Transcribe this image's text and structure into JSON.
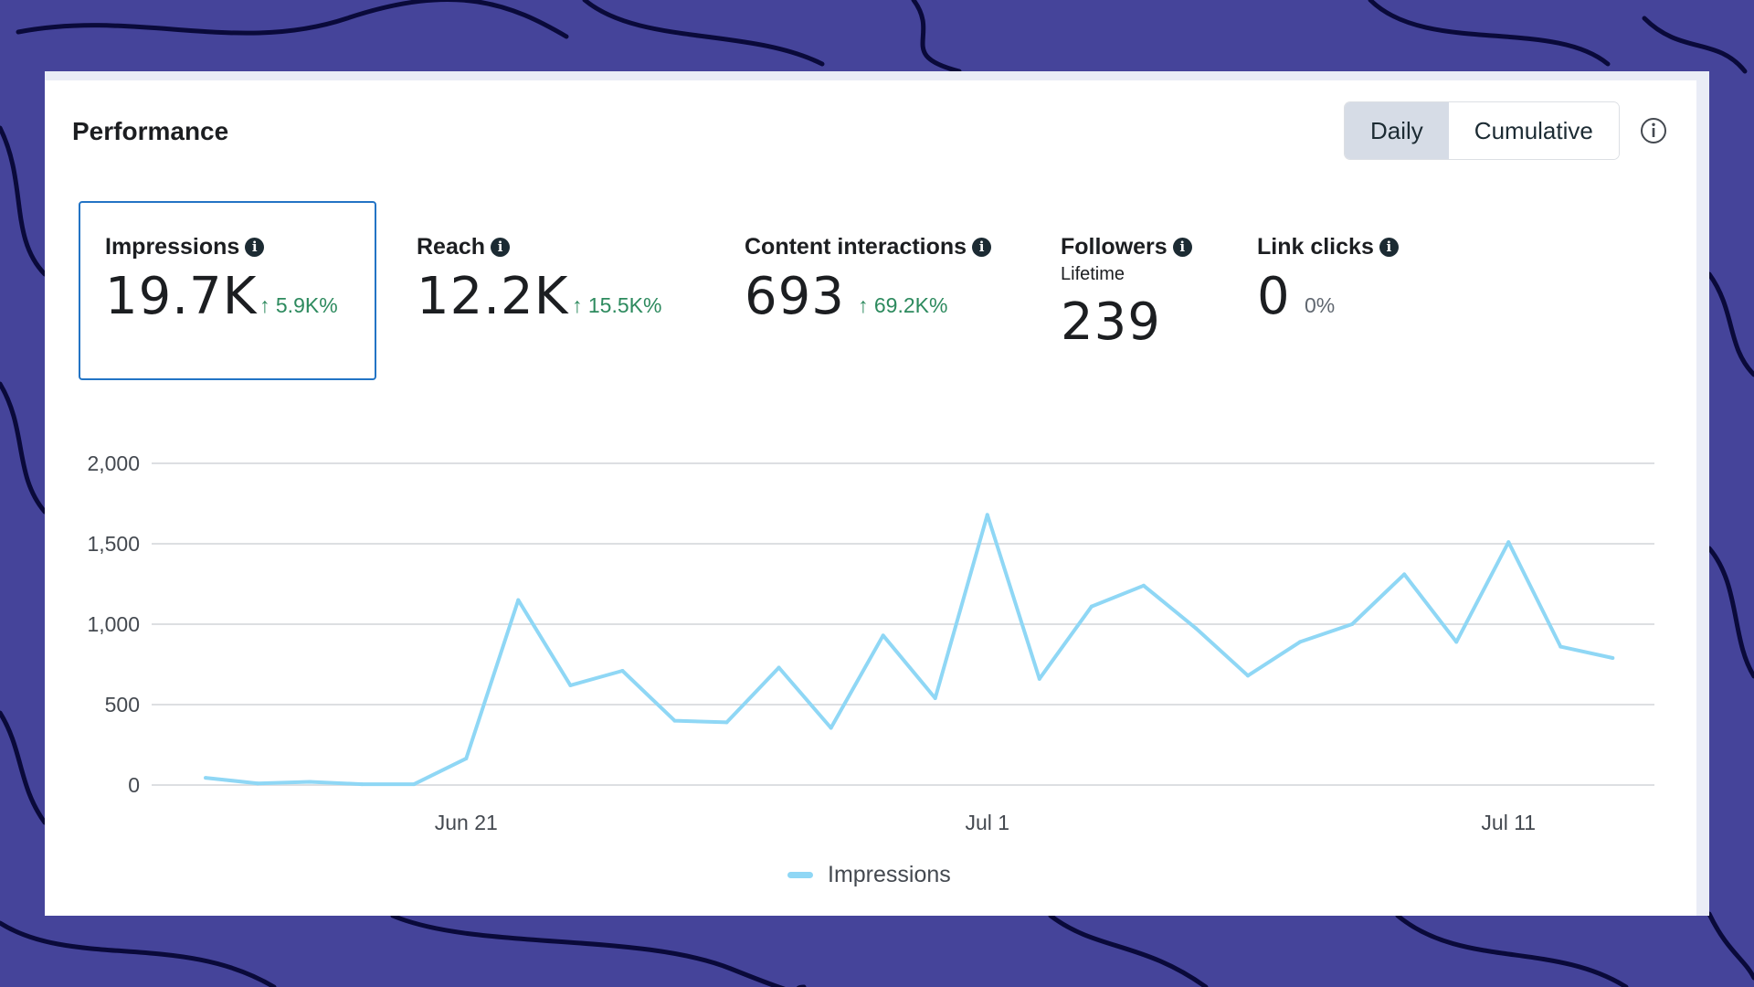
{
  "panel": {
    "title": "Performance",
    "toggle": {
      "daily": "Daily",
      "cumulative": "Cumulative",
      "selected": "Daily"
    }
  },
  "metrics": {
    "impressions": {
      "label": "Impressions",
      "value": "19.7K",
      "change": "5.9K%"
    },
    "reach": {
      "label": "Reach",
      "value": "12.2K",
      "change": "15.5K%"
    },
    "interactions": {
      "label": "Content interactions",
      "value": "693",
      "change": "69.2K%"
    },
    "followers": {
      "label": "Followers",
      "sublabel": "Lifetime",
      "value": "239"
    },
    "link_clicks": {
      "label": "Link clicks",
      "value": "0",
      "change": "0%"
    }
  },
  "colors": {
    "line": "#8fd7f5",
    "positive": "#2d8a5e",
    "selected_border": "#2374c5",
    "background": "#45449a"
  },
  "chart_data": {
    "type": "line",
    "title": "",
    "xlabel": "",
    "ylabel": "",
    "ylim": [
      0,
      2000
    ],
    "yticks": [
      0,
      500,
      1000,
      1500,
      2000
    ],
    "ytick_labels": [
      "0",
      "500",
      "1,000",
      "1,500",
      "2,000"
    ],
    "x_day_range": [
      0,
      27.8
    ],
    "xticks": [
      {
        "day": 5,
        "label": "Jun 21"
      },
      {
        "day": 15,
        "label": "Jul 1"
      },
      {
        "day": 25,
        "label": "Jul 11"
      }
    ],
    "grid": true,
    "legend": "bottom-center",
    "series": [
      {
        "name": "Impressions",
        "start_date": "Jun 16",
        "values": [
          45,
          10,
          20,
          5,
          5,
          165,
          1150,
          620,
          710,
          400,
          390,
          730,
          355,
          930,
          540,
          1680,
          660,
          1110,
          1240,
          975,
          680,
          890,
          1000,
          1310,
          890,
          1510,
          860,
          790
        ]
      }
    ]
  }
}
